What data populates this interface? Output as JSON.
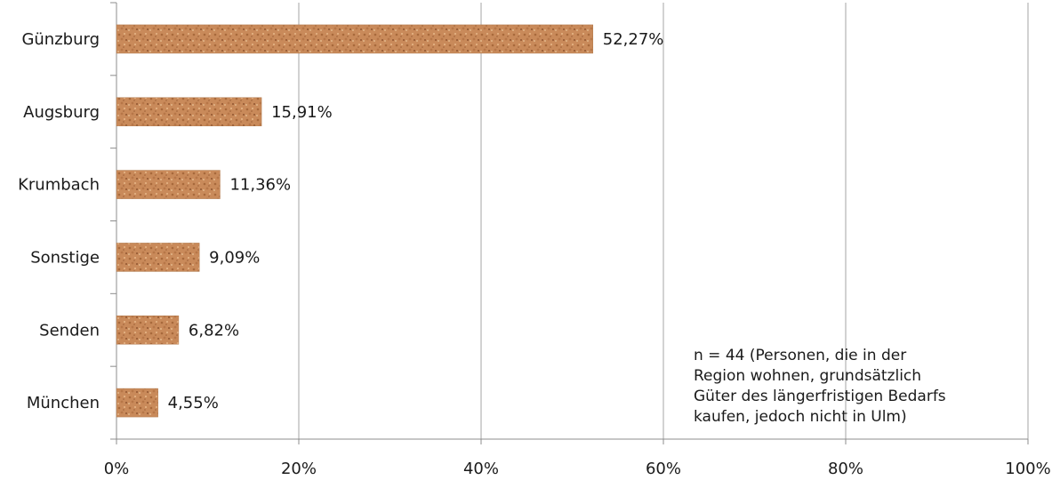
{
  "chart_data": {
    "type": "bar",
    "orientation": "horizontal",
    "categories": [
      "Günzburg",
      "Augsburg",
      "Krumbach",
      "Sonstige",
      "Senden",
      "München"
    ],
    "values": [
      52.27,
      15.91,
      11.36,
      9.09,
      6.82,
      4.55
    ],
    "value_labels": [
      "52,27%",
      "15,91%",
      "11,36%",
      "9,09%",
      "6,82%",
      "4,55%"
    ],
    "xlim": [
      0,
      100
    ],
    "x_ticks": [
      0,
      20,
      40,
      60,
      80,
      100
    ],
    "x_tick_labels": [
      "0%",
      "20%",
      "40%",
      "60%",
      "80%",
      "100%"
    ],
    "grid": "vertical",
    "legend": "none",
    "bar_color": "#c98a5a",
    "annotation_lines": [
      "n = 44 (Personen, die in der",
      "Region wohnen, grundsätzlich",
      "Güter des längerfristigen Bedarfs",
      "kaufen, jedoch nicht in Ulm)"
    ]
  }
}
